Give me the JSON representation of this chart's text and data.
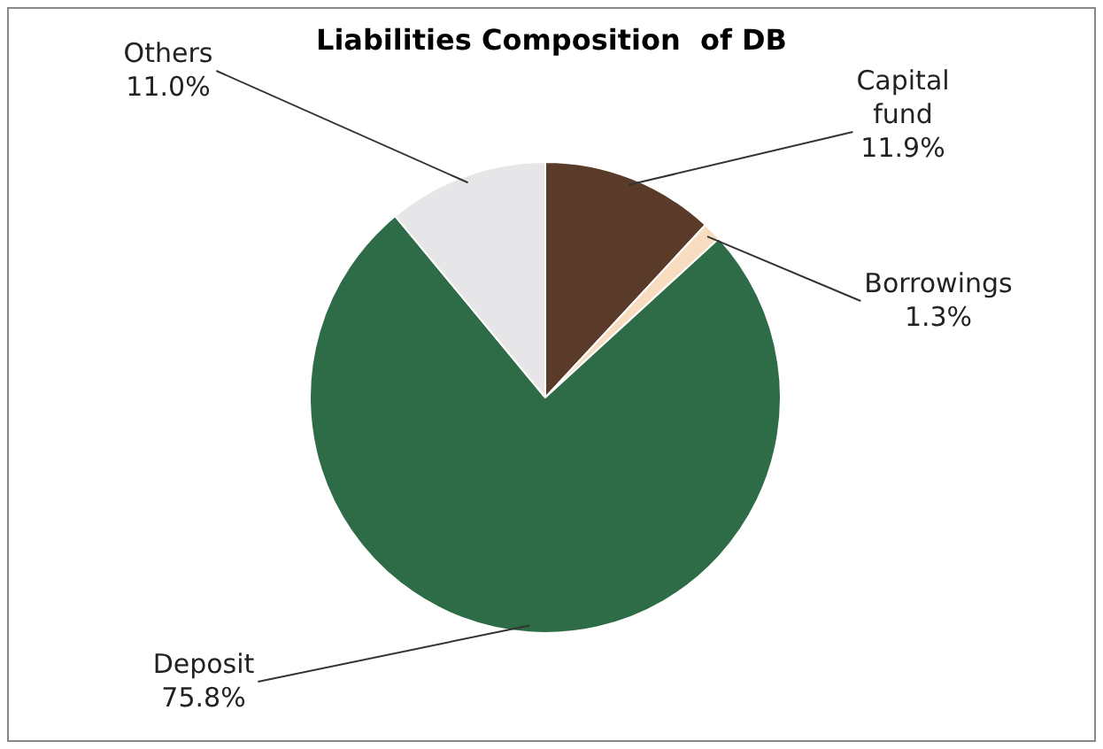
{
  "chart_data": {
    "type": "pie",
    "title": "Liabilities Composition  of DB",
    "categories": [
      "Capital fund",
      "Borrowings",
      "Deposit",
      "Others"
    ],
    "values": [
      11.9,
      1.3,
      75.8,
      11.0
    ],
    "colors": [
      "#5a3a28",
      "#f7dcc0",
      "#2e6b47",
      "#e6e6e8"
    ],
    "value_labels": [
      "11.9%",
      "1.3%",
      "75.8%",
      "11.0%"
    ],
    "legend": false
  }
}
